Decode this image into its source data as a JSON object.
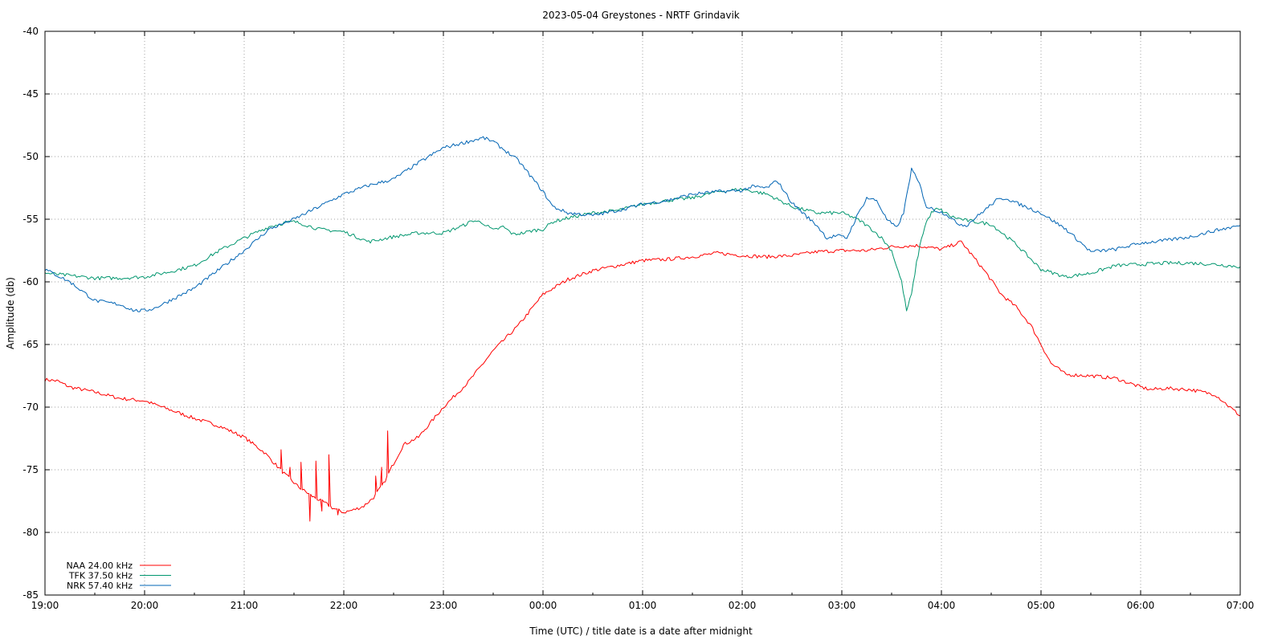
{
  "chart_data": {
    "type": "line",
    "title": "2023-05-04 Greystones - NRTF Grindavik",
    "xlabel": "Time (UTC) / title date is a date after midnight",
    "ylabel": "Amplitude (db)",
    "xlim": [
      0,
      12
    ],
    "ylim": [
      -85,
      -40
    ],
    "xticks": [
      {
        "value": 0,
        "label": "19:00"
      },
      {
        "value": 1,
        "label": "20:00"
      },
      {
        "value": 2,
        "label": "21:00"
      },
      {
        "value": 3,
        "label": "22:00"
      },
      {
        "value": 4,
        "label": "23:00"
      },
      {
        "value": 5,
        "label": "00:00"
      },
      {
        "value": 6,
        "label": "01:00"
      },
      {
        "value": 7,
        "label": "02:00"
      },
      {
        "value": 8,
        "label": "03:00"
      },
      {
        "value": 9,
        "label": "04:00"
      },
      {
        "value": 10,
        "label": "05:00"
      },
      {
        "value": 11,
        "label": "06:00"
      },
      {
        "value": 12,
        "label": "07:00"
      }
    ],
    "yticks": [
      {
        "value": -40,
        "label": "-40"
      },
      {
        "value": -45,
        "label": "-45"
      },
      {
        "value": -50,
        "label": "-50"
      },
      {
        "value": -55,
        "label": "-55"
      },
      {
        "value": -60,
        "label": "-60"
      },
      {
        "value": -65,
        "label": "-65"
      },
      {
        "value": -70,
        "label": "-70"
      },
      {
        "value": -75,
        "label": "-75"
      },
      {
        "value": -80,
        "label": "-80"
      },
      {
        "value": -85,
        "label": "-85"
      }
    ],
    "grid": true,
    "legend_position": "bottom-left",
    "series": [
      {
        "name": "NAA 24.00 kHz",
        "color": "#ff0000",
        "x": [
          0,
          0.12,
          0.25,
          0.5,
          0.75,
          1.0,
          1.25,
          1.5,
          1.75,
          2.0,
          2.2,
          2.4,
          2.55,
          2.7,
          2.8,
          2.9,
          3.0,
          3.1,
          3.2,
          3.3,
          3.4,
          3.5,
          3.6,
          3.75,
          4.0,
          4.25,
          4.5,
          4.75,
          5.0,
          5.25,
          5.5,
          5.75,
          6.0,
          6.25,
          6.5,
          6.75,
          7.0,
          7.25,
          7.5,
          7.75,
          8.0,
          8.25,
          8.5,
          8.75,
          9.0,
          9.1,
          9.2,
          9.3,
          9.45,
          9.6,
          9.75,
          9.9,
          10.0,
          10.1,
          10.25,
          10.5,
          10.75,
          11.0,
          11.1,
          11.25,
          11.5,
          11.75,
          12.0
        ],
        "y": [
          -67.8,
          -67.9,
          -68.4,
          -68.8,
          -69.3,
          -69.5,
          -70.2,
          -70.9,
          -71.5,
          -72.4,
          -73.6,
          -75.3,
          -76.4,
          -77.2,
          -77.6,
          -78.1,
          -78.4,
          -78.2,
          -77.9,
          -77.2,
          -76.1,
          -74.5,
          -73.0,
          -72.4,
          -70.0,
          -68.0,
          -65.5,
          -63.5,
          -61.0,
          -59.8,
          -59.1,
          -58.7,
          -58.3,
          -58.2,
          -58.0,
          -57.7,
          -57.9,
          -58.0,
          -57.9,
          -57.6,
          -57.5,
          -57.5,
          -57.2,
          -57.1,
          -57.4,
          -57.1,
          -56.8,
          -57.8,
          -59.3,
          -61.0,
          -62.0,
          -63.5,
          -65.0,
          -66.5,
          -67.4,
          -67.5,
          -67.7,
          -68.4,
          -68.6,
          -68.5,
          -68.6,
          -69.0,
          -70.7
        ],
        "spikes": [
          {
            "x": 2.37,
            "y": -73.4
          },
          {
            "x": 2.46,
            "y": -74.8
          },
          {
            "x": 2.57,
            "y": -74.4
          },
          {
            "x": 2.66,
            "y": -79.1
          },
          {
            "x": 2.72,
            "y": -74.3
          },
          {
            "x": 2.78,
            "y": -78.3
          },
          {
            "x": 2.85,
            "y": -73.8
          },
          {
            "x": 2.94,
            "y": -78.6
          },
          {
            "x": 3.32,
            "y": -75.5
          },
          {
            "x": 3.38,
            "y": -74.8
          },
          {
            "x": 3.44,
            "y": -71.9
          }
        ]
      },
      {
        "name": "TFK 37.50 kHz",
        "color": "#00966e",
        "x": [
          0,
          0.25,
          0.5,
          0.75,
          1.0,
          1.25,
          1.5,
          1.75,
          2.0,
          2.25,
          2.4,
          2.5,
          2.6,
          2.75,
          3.0,
          3.25,
          3.5,
          3.75,
          4.0,
          4.2,
          4.3,
          4.4,
          4.5,
          4.6,
          4.7,
          4.8,
          4.9,
          5.0,
          5.1,
          5.25,
          5.5,
          5.75,
          6.0,
          6.25,
          6.5,
          6.75,
          7.0,
          7.25,
          7.5,
          7.75,
          8.0,
          8.1,
          8.2,
          8.3,
          8.4,
          8.5,
          8.6,
          8.65,
          8.7,
          8.75,
          8.8,
          8.85,
          8.9,
          8.95,
          9.0,
          9.1,
          9.25,
          9.5,
          9.75,
          10.0,
          10.25,
          10.5,
          10.75,
          11.0,
          11.25,
          11.5,
          11.75,
          12.0
        ],
        "y": [
          -59.3,
          -59.5,
          -59.7,
          -59.7,
          -59.6,
          -59.2,
          -58.7,
          -57.5,
          -56.5,
          -55.6,
          -55.3,
          -55.2,
          -55.4,
          -55.8,
          -56.0,
          -56.8,
          -56.4,
          -56.1,
          -56.1,
          -55.5,
          -55.1,
          -55.3,
          -55.9,
          -55.6,
          -56.2,
          -56.1,
          -55.9,
          -55.8,
          -55.2,
          -54.9,
          -54.5,
          -54.3,
          -53.8,
          -53.5,
          -53.3,
          -52.8,
          -52.6,
          -53.0,
          -54.0,
          -54.5,
          -54.5,
          -54.8,
          -55.2,
          -55.8,
          -56.5,
          -57.5,
          -60.0,
          -62.3,
          -61.0,
          -58.5,
          -56.5,
          -55.2,
          -54.5,
          -54.2,
          -54.3,
          -54.8,
          -55.1,
          -55.4,
          -57.0,
          -59.0,
          -59.6,
          -59.3,
          -58.7,
          -58.6,
          -58.5,
          -58.5,
          -58.6,
          -58.8
        ]
      },
      {
        "name": "NRK 57.40 kHz",
        "color": "#0064b4",
        "x": [
          0,
          0.25,
          0.5,
          0.75,
          0.9,
          1.0,
          1.1,
          1.25,
          1.5,
          1.75,
          2.0,
          2.25,
          2.5,
          2.75,
          3.0,
          3.25,
          3.5,
          3.75,
          4.0,
          4.25,
          4.4,
          4.5,
          4.6,
          4.75,
          5.0,
          5.1,
          5.25,
          5.5,
          5.75,
          6.0,
          6.25,
          6.5,
          6.75,
          7.0,
          7.1,
          7.25,
          7.35,
          7.5,
          7.65,
          7.75,
          7.85,
          7.95,
          8.05,
          8.15,
          8.25,
          8.35,
          8.45,
          8.55,
          8.62,
          8.7,
          8.78,
          8.85,
          8.95,
          9.05,
          9.15,
          9.25,
          9.4,
          9.55,
          9.65,
          9.75,
          10.0,
          10.25,
          10.5,
          10.75,
          11.0,
          11.25,
          11.5,
          11.75,
          12.0
        ],
        "y": [
          -59.0,
          -60.0,
          -61.5,
          -61.8,
          -62.3,
          -62.3,
          -62.1,
          -61.5,
          -60.5,
          -59.0,
          -57.5,
          -55.8,
          -55.0,
          -54.0,
          -53.0,
          -52.3,
          -51.8,
          -50.5,
          -49.3,
          -48.8,
          -48.5,
          -48.8,
          -49.4,
          -50.3,
          -52.8,
          -54.0,
          -54.5,
          -54.7,
          -54.3,
          -53.8,
          -53.5,
          -53.0,
          -52.8,
          -52.7,
          -52.4,
          -52.5,
          -51.9,
          -53.7,
          -54.8,
          -55.5,
          -56.5,
          -56.3,
          -56.5,
          -54.8,
          -53.3,
          -53.5,
          -55.0,
          -55.7,
          -54.5,
          -51.0,
          -52.2,
          -54.0,
          -54.3,
          -54.6,
          -55.3,
          -55.5,
          -54.5,
          -53.5,
          -53.3,
          -53.7,
          -54.5,
          -55.8,
          -57.6,
          -57.4,
          -56.9,
          -56.7,
          -56.4,
          -55.9,
          -55.5
        ]
      }
    ],
    "legend": [
      {
        "label": "NAA 24.00 kHz",
        "color": "#ff0000"
      },
      {
        "label": "TFK 37.50 kHz",
        "color": "#00966e"
      },
      {
        "label": "NRK 57.40 kHz",
        "color": "#0064b4"
      }
    ]
  }
}
